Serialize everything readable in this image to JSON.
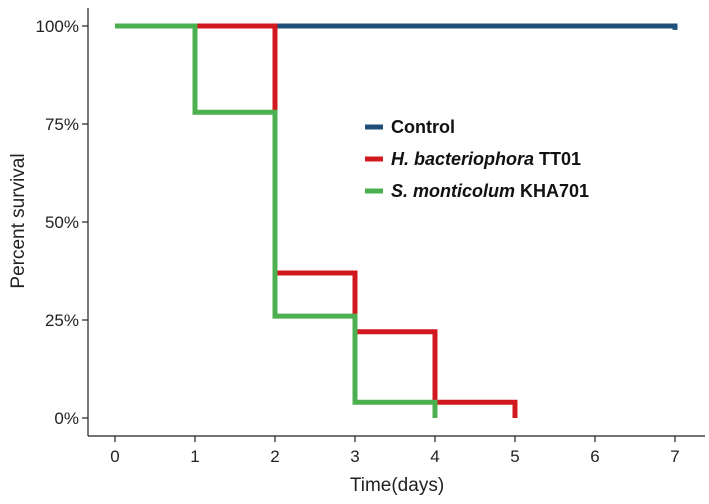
{
  "chart_data": {
    "type": "line",
    "step": true,
    "title": "",
    "xlabel": "Time(days)",
    "ylabel": "Percent survival",
    "xlim": [
      0,
      7
    ],
    "ylim": [
      0,
      100
    ],
    "x_ticks": [
      0,
      1,
      2,
      3,
      4,
      5,
      6,
      7
    ],
    "x_tick_labels": [
      "0",
      "1",
      "2",
      "3",
      "4",
      "5",
      "6",
      "7"
    ],
    "y_ticks": [
      0,
      25,
      50,
      75,
      100
    ],
    "y_tick_labels": [
      "0%",
      "25%",
      "50%",
      "75%",
      "100%"
    ],
    "grid": false,
    "legend_position": "right-center",
    "series": [
      {
        "name": "Control",
        "legend_italic": "",
        "legend_plain": "Control",
        "color": "#1f4e79",
        "points": [
          [
            0,
            100
          ],
          [
            7,
            100
          ],
          [
            7,
            99
          ]
        ]
      },
      {
        "name": "H. bacteriophora TT01",
        "legend_italic": "H. bacteriophora",
        "legend_plain": " TT01",
        "color": "#d0181e",
        "points": [
          [
            0,
            100
          ],
          [
            2,
            100
          ],
          [
            2,
            37
          ],
          [
            3,
            37
          ],
          [
            3,
            22
          ],
          [
            4,
            22
          ],
          [
            4,
            4
          ],
          [
            5,
            4
          ],
          [
            5,
            0
          ]
        ]
      },
      {
        "name": "S. monticolum KHA701",
        "legend_italic": "S. monticolum",
        "legend_plain": " KHA701",
        "color": "#4caf50",
        "points": [
          [
            0,
            100
          ],
          [
            1,
            100
          ],
          [
            1,
            78
          ],
          [
            2,
            78
          ],
          [
            2,
            26
          ],
          [
            3,
            26
          ],
          [
            3,
            4
          ],
          [
            4,
            4
          ],
          [
            4,
            0
          ]
        ]
      }
    ]
  }
}
